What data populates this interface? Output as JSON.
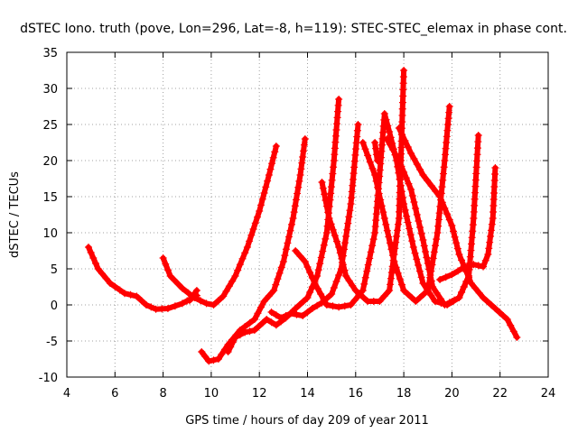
{
  "chart_data": {
    "type": "scatter",
    "title": "dSTEC Iono. truth (pove, Lon=296, Lat=-8, h=119): STEC-STEC_elemax in phase cont.",
    "xlabel": "GPS time / hours of day 209 of year 2011",
    "ylabel": "dSTEC  / TECUs",
    "xlim": [
      4,
      24
    ],
    "ylim": [
      -10,
      35
    ],
    "xticks": [
      4,
      6,
      8,
      10,
      12,
      14,
      16,
      18,
      20,
      22,
      24
    ],
    "yticks": [
      -10,
      -5,
      0,
      5,
      10,
      15,
      20,
      25,
      30,
      35
    ],
    "grid": true,
    "marker": "+",
    "color": "#ff0000",
    "series": [
      {
        "points": [
          [
            4.9,
            8
          ],
          [
            5.3,
            5
          ],
          [
            5.8,
            3
          ],
          [
            6.4,
            1.6
          ],
          [
            6.9,
            1.2
          ],
          [
            7.3,
            0
          ],
          [
            7.7,
            -0.6
          ],
          [
            8.2,
            -0.5
          ],
          [
            8.8,
            0.2
          ],
          [
            9.4,
            1.3
          ]
        ]
      },
      {
        "points": [
          [
            8.0,
            6.5
          ],
          [
            8.3,
            4
          ],
          [
            8.8,
            2.3
          ],
          [
            9.3,
            1
          ],
          [
            9.8,
            0.2
          ],
          [
            10.1,
            0
          ],
          [
            10.5,
            1.2
          ],
          [
            11.0,
            4
          ],
          [
            11.5,
            8
          ],
          [
            12.0,
            13
          ],
          [
            12.4,
            18
          ],
          [
            12.7,
            22
          ]
        ]
      },
      {
        "points": [
          [
            9.4,
            2
          ],
          [
            9.1,
            0.6
          ]
        ]
      },
      {
        "points": [
          [
            9.6,
            -6.5
          ],
          [
            9.9,
            -7.8
          ],
          [
            10.3,
            -7.5
          ],
          [
            10.7,
            -5.5
          ],
          [
            11.2,
            -3.5
          ],
          [
            11.8,
            -2
          ],
          [
            12.2,
            0.5
          ],
          [
            12.6,
            2
          ],
          [
            13.0,
            6
          ],
          [
            13.4,
            12
          ],
          [
            13.7,
            18
          ],
          [
            13.9,
            23
          ]
        ]
      },
      {
        "points": [
          [
            10.7,
            -6.5
          ],
          [
            11.0,
            -4.5
          ],
          [
            11.4,
            -3.8
          ],
          [
            11.8,
            -3.5
          ],
          [
            12.3,
            -2
          ],
          [
            12.7,
            -2.8
          ],
          [
            13.1,
            -1.8
          ],
          [
            13.5,
            -0.5
          ],
          [
            14.0,
            1
          ],
          [
            14.4,
            4
          ],
          [
            14.8,
            10
          ],
          [
            15.1,
            20
          ],
          [
            15.3,
            28.5
          ]
        ]
      },
      {
        "points": [
          [
            12.5,
            -1
          ],
          [
            12.9,
            -1.8
          ],
          [
            13.3,
            -1.2
          ],
          [
            13.8,
            -1.5
          ],
          [
            14.2,
            -0.5
          ],
          [
            14.6,
            0.3
          ],
          [
            15.0,
            1.5
          ],
          [
            15.4,
            5
          ],
          [
            15.8,
            14
          ],
          [
            16.1,
            25
          ]
        ]
      },
      {
        "points": [
          [
            13.5,
            7.5
          ],
          [
            13.9,
            6
          ],
          [
            14.3,
            3
          ],
          [
            14.8,
            0
          ],
          [
            15.3,
            -0.3
          ],
          [
            15.8,
            0
          ],
          [
            16.3,
            2
          ],
          [
            16.8,
            10
          ],
          [
            17.2,
            26.5
          ],
          [
            17.4,
            24
          ],
          [
            17.7,
            20
          ],
          [
            18.0,
            14
          ],
          [
            18.4,
            8
          ],
          [
            18.8,
            3
          ],
          [
            19.3,
            0.5
          ],
          [
            19.8,
            0
          ],
          [
            20.3,
            1
          ],
          [
            20.7,
            4
          ]
        ]
      },
      {
        "points": [
          [
            14.6,
            17
          ],
          [
            14.9,
            12
          ],
          [
            15.3,
            8
          ],
          [
            15.6,
            4
          ],
          [
            16.0,
            2
          ],
          [
            16.5,
            0.5
          ],
          [
            17.0,
            0.5
          ],
          [
            17.4,
            2
          ],
          [
            17.8,
            12
          ],
          [
            18.0,
            32.5
          ]
        ]
      },
      {
        "points": [
          [
            16.3,
            22.5
          ],
          [
            16.8,
            18
          ],
          [
            17.2,
            12
          ],
          [
            17.6,
            6
          ],
          [
            18.0,
            2
          ],
          [
            18.5,
            0.5
          ],
          [
            19.0,
            2
          ],
          [
            19.4,
            10
          ],
          [
            19.7,
            20
          ],
          [
            19.9,
            27.5
          ]
        ]
      },
      {
        "points": [
          [
            16.8,
            22.5
          ],
          [
            16.9,
            20
          ]
        ]
      },
      {
        "points": [
          [
            17.3,
            23
          ],
          [
            17.8,
            20
          ],
          [
            18.3,
            16
          ],
          [
            18.8,
            9
          ],
          [
            19.2,
            2.5
          ],
          [
            19.7,
            0
          ],
          [
            20.3,
            1
          ],
          [
            20.7,
            4
          ],
          [
            20.9,
            12
          ],
          [
            21.1,
            23.5
          ]
        ]
      },
      {
        "points": [
          [
            17.8,
            24.5
          ],
          [
            18.3,
            21
          ],
          [
            18.8,
            18
          ],
          [
            19.5,
            15
          ],
          [
            20.0,
            11
          ],
          [
            20.3,
            7
          ],
          [
            20.8,
            3
          ],
          [
            21.3,
            1
          ],
          [
            21.8,
            -0.5
          ],
          [
            22.3,
            -2
          ],
          [
            22.7,
            -4.5
          ]
        ]
      },
      {
        "points": [
          [
            19.5,
            3.5
          ],
          [
            20.0,
            4.2
          ],
          [
            20.5,
            5.2
          ],
          [
            20.9,
            5.6
          ],
          [
            21.3,
            5.3
          ],
          [
            21.5,
            7
          ],
          [
            21.7,
            12
          ],
          [
            21.8,
            19
          ]
        ]
      }
    ]
  }
}
